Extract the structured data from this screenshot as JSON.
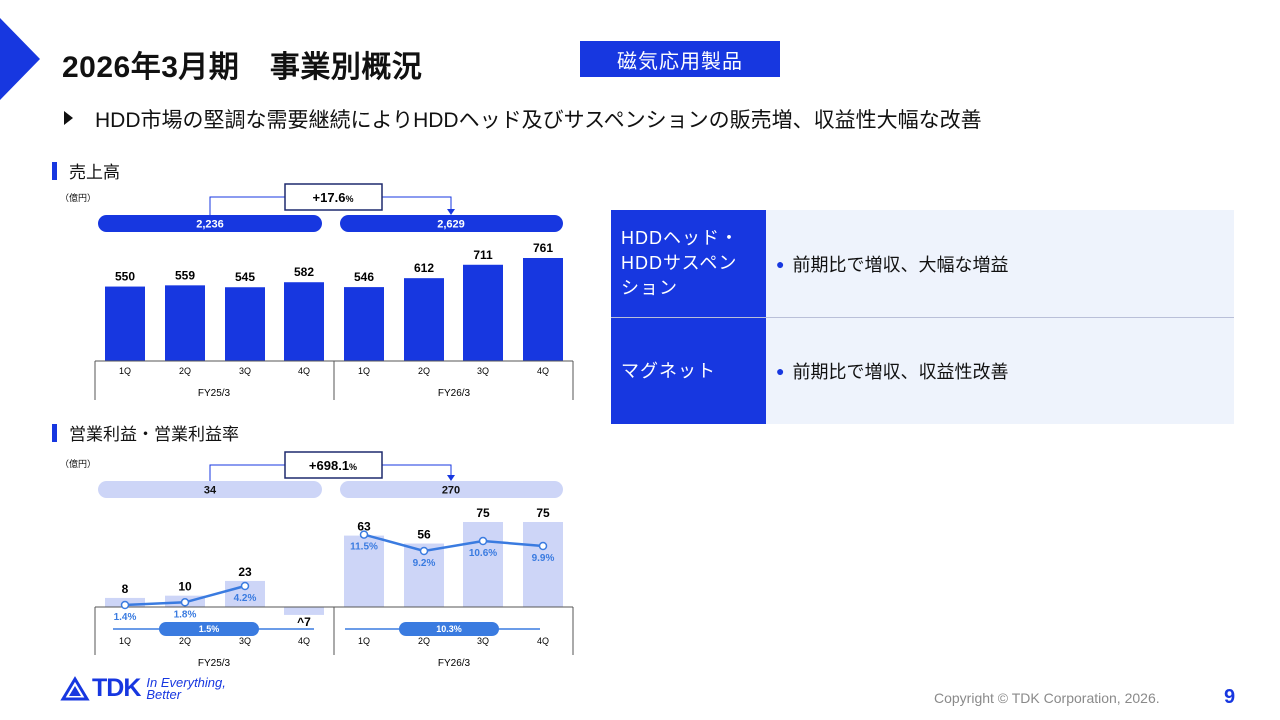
{
  "page": {
    "title": "2026年3月期　事業別概況",
    "segment": "磁気応用製品",
    "headline": "HDD市場の堅調な需要継続によりHDDヘッド及びサスペンションの販売増、収益性大幅な改善",
    "page_number": "9",
    "copyright": "Copyright  © TDK Corporation, 2026.",
    "logo": {
      "word": "TDK",
      "slogan_line1": "In Everything,",
      "slogan_line2": "Better"
    }
  },
  "colors": {
    "accent": "#1737e0",
    "bar_light": "#cdd5f7",
    "line": "#3a7be0",
    "table_body": "#eef3fc"
  },
  "charts": {
    "sales": {
      "label": "売上高",
      "unit": "（億円）",
      "growth": "+17.6",
      "growth_suffix": "%",
      "fy_totals": [
        "2,236",
        "2,629"
      ]
    },
    "op": {
      "label": "営業利益・営業利益率",
      "unit": "（億円）",
      "growth": "+698.1",
      "growth_suffix": "%",
      "fy_totals": [
        "34",
        "270"
      ],
      "fy_margins": [
        "1.5%",
        "10.3%"
      ]
    }
  },
  "chart_data": [
    {
      "type": "bar",
      "title": "売上高",
      "ylabel": "（億円）",
      "categories": [
        "1Q",
        "2Q",
        "3Q",
        "4Q",
        "1Q",
        "2Q",
        "3Q",
        "4Q"
      ],
      "groups": [
        "FY25/3",
        "FY26/3"
      ],
      "values": [
        550,
        559,
        545,
        582,
        546,
        612,
        711,
        761
      ],
      "value_labels": [
        "550",
        "559",
        "545",
        "582",
        "546",
        "612",
        "711",
        "761"
      ],
      "ylim": [
        0,
        800
      ]
    },
    {
      "type": "bar+line",
      "title": "営業利益・営業利益率",
      "ylabel": "（億円）",
      "categories": [
        "1Q",
        "2Q",
        "3Q",
        "4Q",
        "1Q",
        "2Q",
        "3Q",
        "4Q"
      ],
      "groups": [
        "FY25/3",
        "FY26/3"
      ],
      "values": [
        8,
        10,
        23,
        -7,
        63,
        56,
        75,
        75
      ],
      "value_labels": [
        "8",
        "10",
        "23",
        "^7",
        "63",
        "56",
        "75",
        "75"
      ],
      "margin_values": [
        1.4,
        1.8,
        4.2,
        11.5,
        9.2,
        10.6,
        9.9
      ],
      "margin_labels": [
        "1.4%",
        "1.8%",
        "4.2%",
        "11.5%",
        "9.2%",
        "10.6%",
        "9.9%"
      ],
      "ylim": [
        -10,
        80
      ]
    }
  ],
  "table": [
    {
      "head": "HDDヘッド・HDDサスペンション",
      "head_lines": [
        "HDDヘッド・",
        "HDDサスペン",
        "ション"
      ],
      "body": "前期比で増収、大幅な増益"
    },
    {
      "head": "マグネット",
      "head_lines": [
        "マグネット"
      ],
      "body": "前期比で増収、収益性改善"
    }
  ]
}
